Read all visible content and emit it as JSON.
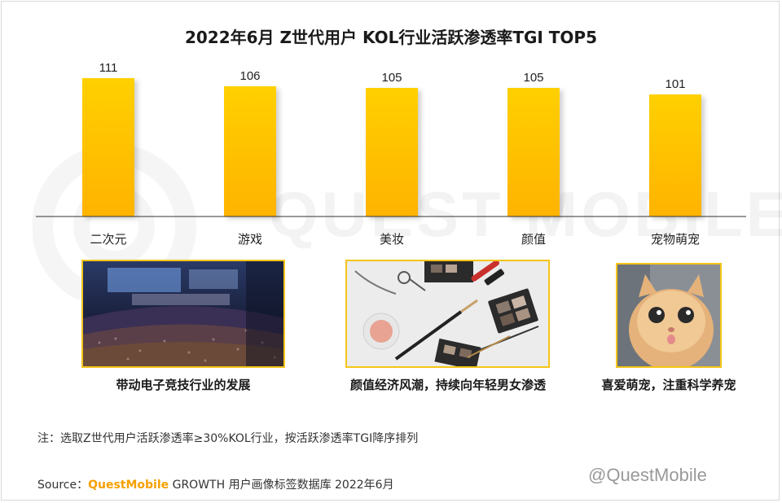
{
  "title": "2022年6月 Z世代用户 KOL行业活跃渗透率TGI TOP5",
  "chart_data": {
    "type": "bar",
    "title": "2022年6月 Z世代用户 KOL行业活跃渗透率TGI TOP5",
    "categories": [
      "二次元",
      "游戏",
      "美妆",
      "颜值",
      "宠物萌宠"
    ],
    "values": [
      111,
      106,
      105,
      105,
      101
    ],
    "data_labels": [
      "111",
      "106",
      "105",
      "105",
      "101"
    ],
    "ylim": [
      0,
      111
    ],
    "grid": false,
    "legend": "none",
    "bar_color_top": "#ffd000",
    "bar_color_bottom": "#ffb300"
  },
  "captions": [
    "带动电子竞技行业的发展",
    "颜值经济风潮，持续向年轻男女渗透",
    "喜爱萌宠，注重科学养宠"
  ],
  "images": [
    "esports-arena-photo",
    "makeup-products-photo",
    "kitten-photo"
  ],
  "note": "注：选取Z世代用户活跃渗透率≥30%KOL行业，按活跃渗透率TGI降序排列",
  "source": {
    "label": "Source：",
    "brand": "QuestMobile",
    "text": "GROWTH 用户画像标签数据库 2022年6月"
  },
  "watermark_corner": "@QuestMobile",
  "watermark_center": "QUEST MOBILE",
  "colors": {
    "accent": "#f5a000",
    "border": "#f5c518"
  }
}
